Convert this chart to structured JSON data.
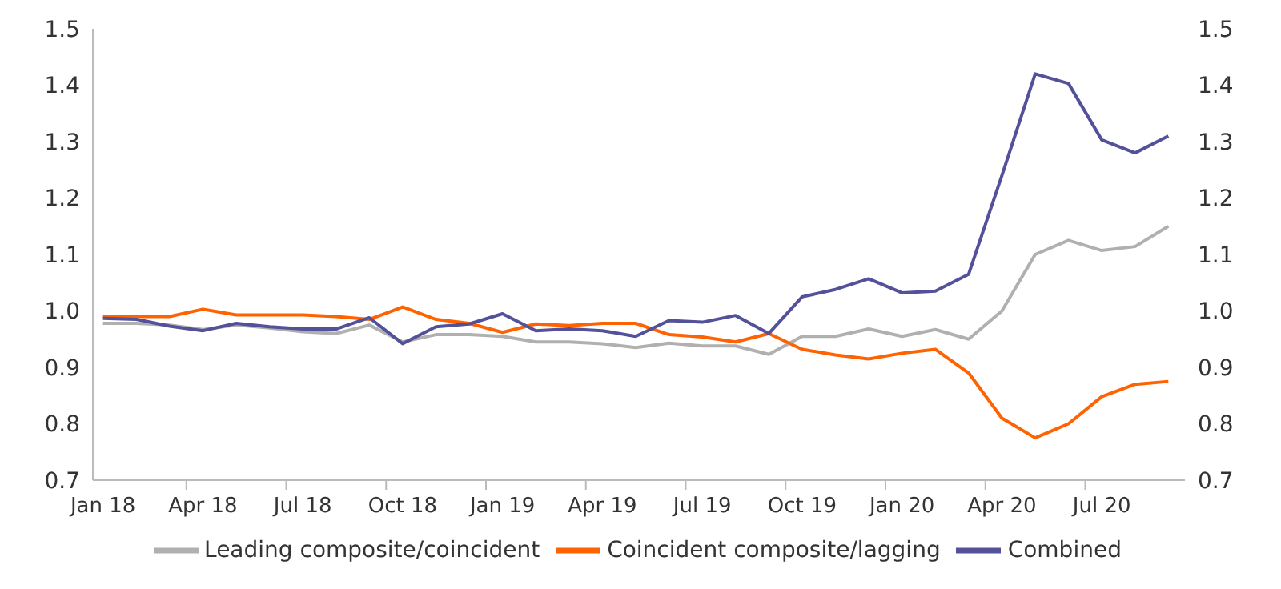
{
  "chart_data": {
    "type": "line",
    "categories": [
      "Jan 18",
      null,
      null,
      "Apr 18",
      null,
      null,
      "Jul 18",
      null,
      null,
      "Oct 18",
      null,
      null,
      "Jan 19",
      null,
      null,
      "Apr 19",
      null,
      null,
      "Jul 19",
      null,
      null,
      "Oct 19",
      null,
      null,
      "Jan 20",
      null,
      null,
      "Apr 20",
      null,
      null,
      "Jul 20",
      null,
      null
    ],
    "series": [
      {
        "name": "Leading composite/coincident",
        "color": "#b0b0b0",
        "values": [
          0.978,
          0.978,
          0.975,
          0.967,
          0.975,
          0.97,
          0.963,
          0.96,
          0.975,
          0.945,
          0.958,
          0.958,
          0.955,
          0.945,
          0.945,
          0.942,
          0.935,
          0.943,
          0.938,
          0.938,
          0.923,
          0.955,
          0.955,
          0.968,
          0.955,
          0.967,
          0.95,
          1.0,
          1.1,
          1.125,
          1.107,
          1.114,
          1.15
        ]
      },
      {
        "name": "Coincident composite/lagging",
        "color": "#ff6200",
        "values": [
          0.99,
          0.99,
          0.99,
          1.003,
          0.993,
          0.993,
          0.993,
          0.99,
          0.985,
          1.007,
          0.985,
          0.978,
          0.962,
          0.977,
          0.974,
          0.978,
          0.978,
          0.958,
          0.954,
          0.945,
          0.96,
          0.932,
          0.922,
          0.915,
          0.925,
          0.932,
          0.89,
          0.81,
          0.775,
          0.8,
          0.848,
          0.87,
          0.875
        ]
      },
      {
        "name": "Combined",
        "color": "#525199",
        "values": [
          0.987,
          0.985,
          0.973,
          0.965,
          0.978,
          0.972,
          0.968,
          0.968,
          0.988,
          0.942,
          0.972,
          0.977,
          0.995,
          0.965,
          0.968,
          0.965,
          0.955,
          0.983,
          0.98,
          0.992,
          0.96,
          1.025,
          1.038,
          1.057,
          1.032,
          1.035,
          1.065,
          1.24,
          1.42,
          1.403,
          1.303,
          1.28,
          1.31
        ]
      }
    ],
    "ylim": [
      0.7,
      1.5
    ],
    "yticks": [
      {
        "value": 0.7,
        "label": "0.7"
      },
      {
        "value": 0.8,
        "label": "0.8"
      },
      {
        "value": 0.9,
        "label": "0.9"
      },
      {
        "value": 1.0,
        "label": "1.0"
      },
      {
        "value": 1.1,
        "label": "1.1"
      },
      {
        "value": 1.2,
        "label": "1.2"
      },
      {
        "value": 1.3,
        "label": "1.3"
      },
      {
        "value": 1.4,
        "label": "1.4"
      },
      {
        "value": 1.5,
        "label": "1.5"
      }
    ],
    "y2lim": [
      0.7,
      1.5
    ],
    "y2ticks": [
      {
        "value": 0.7,
        "label": "0.7"
      },
      {
        "value": 0.8,
        "label": "0.8"
      },
      {
        "value": 0.9,
        "label": "0.9"
      },
      {
        "value": 1.0,
        "label": "1.0"
      },
      {
        "value": 1.1,
        "label": "1.1"
      },
      {
        "value": 1.2,
        "label": "1.2"
      },
      {
        "value": 1.3,
        "label": "1.3"
      },
      {
        "value": 1.4,
        "label": "1.4"
      },
      {
        "value": 1.5,
        "label": "1.5"
      }
    ],
    "grid": false,
    "legend": "bottom",
    "marker": "none",
    "line_style": "solid"
  }
}
